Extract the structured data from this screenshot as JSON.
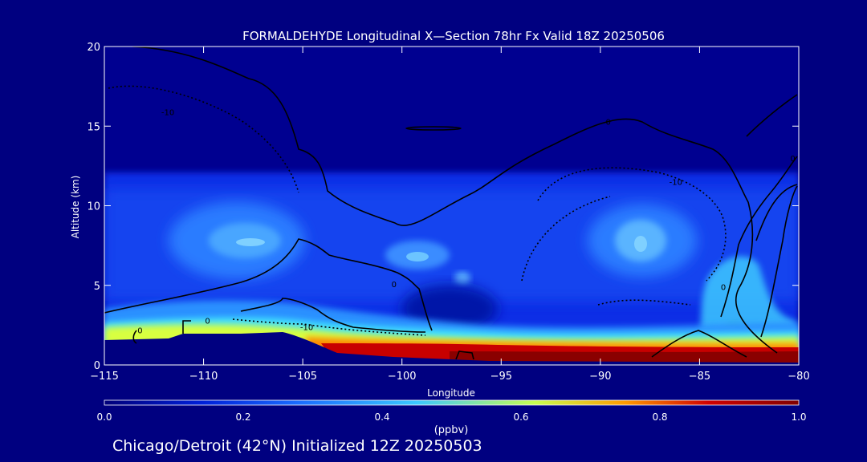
{
  "chart_data": {
    "type": "heatmap",
    "title": "FORMALDEHYDE Longitudinal X—Section 78hr  Fx Valid 18Z 20250506",
    "xlabel": "Longitude",
    "ylabel": "Altitude (km)",
    "xlim": [
      -115,
      -80
    ],
    "ylim": [
      0,
      20
    ],
    "x_ticks": [
      -115,
      -110,
      -105,
      -100,
      -95,
      -90,
      -85,
      -80
    ],
    "x_tick_labels": [
      "−115",
      "−110",
      "−105",
      "−100",
      "−95",
      "−90",
      "−85",
      "−80"
    ],
    "y_ticks": [
      0,
      5,
      10,
      15,
      20
    ],
    "y_tick_labels": [
      "0",
      "5",
      "10",
      "15",
      "20"
    ],
    "colorbar": {
      "label": "(ppbv)",
      "range": [
        0.0,
        1.0
      ],
      "ticks": [
        0.0,
        0.2,
        0.4,
        0.6,
        0.8,
        1.0
      ],
      "tick_labels": [
        "0.0",
        "0.2",
        "0.4",
        "0.6",
        "0.8",
        "1.0"
      ],
      "colors": [
        "#00007a",
        "#0020d8",
        "#1a6cff",
        "#3cc8ff",
        "#c8ff50",
        "#ff9a00",
        "#d00000",
        "#800000"
      ]
    },
    "grid": false,
    "temperature_contour_labels": [
      {
        "text": "0",
        "lon": -113.2,
        "alt": 2.2
      },
      {
        "text": "0",
        "lon": -109.8,
        "alt": 2.8
      },
      {
        "text": "-10",
        "lon": -104.8,
        "alt": 2.4
      },
      {
        "text": "0",
        "lon": -100.4,
        "alt": 5.1
      },
      {
        "text": "-10",
        "lon": -111.8,
        "alt": 15.9
      },
      {
        "text": "-10",
        "lon": -86.2,
        "alt": 11.5
      },
      {
        "text": "0",
        "lon": -89.6,
        "alt": 15.3
      },
      {
        "text": "0",
        "lon": -83.8,
        "alt": 4.9
      },
      {
        "text": "0",
        "lon": -80.3,
        "alt": 13.0
      }
    ],
    "field_description_blobs": [
      {
        "lon": -108,
        "alt": 7.5,
        "value": 0.32
      },
      {
        "lon": -88,
        "alt": 8.0,
        "value": 0.32
      },
      {
        "lon": -99,
        "alt": 7.0,
        "value": 0.3
      },
      {
        "lon": -83.5,
        "alt": 5.0,
        "value": 0.42
      },
      {
        "lon": -95,
        "alt": 1.0,
        "value": 1.0
      },
      {
        "lon": -87,
        "alt": 0.9,
        "value": 1.0
      },
      {
        "lon": -113,
        "alt": 2.0,
        "value": 0.62
      }
    ]
  },
  "footer": {
    "subtitle": "Chicago/Detroit (42°N) Initialized 12Z 20250503"
  }
}
